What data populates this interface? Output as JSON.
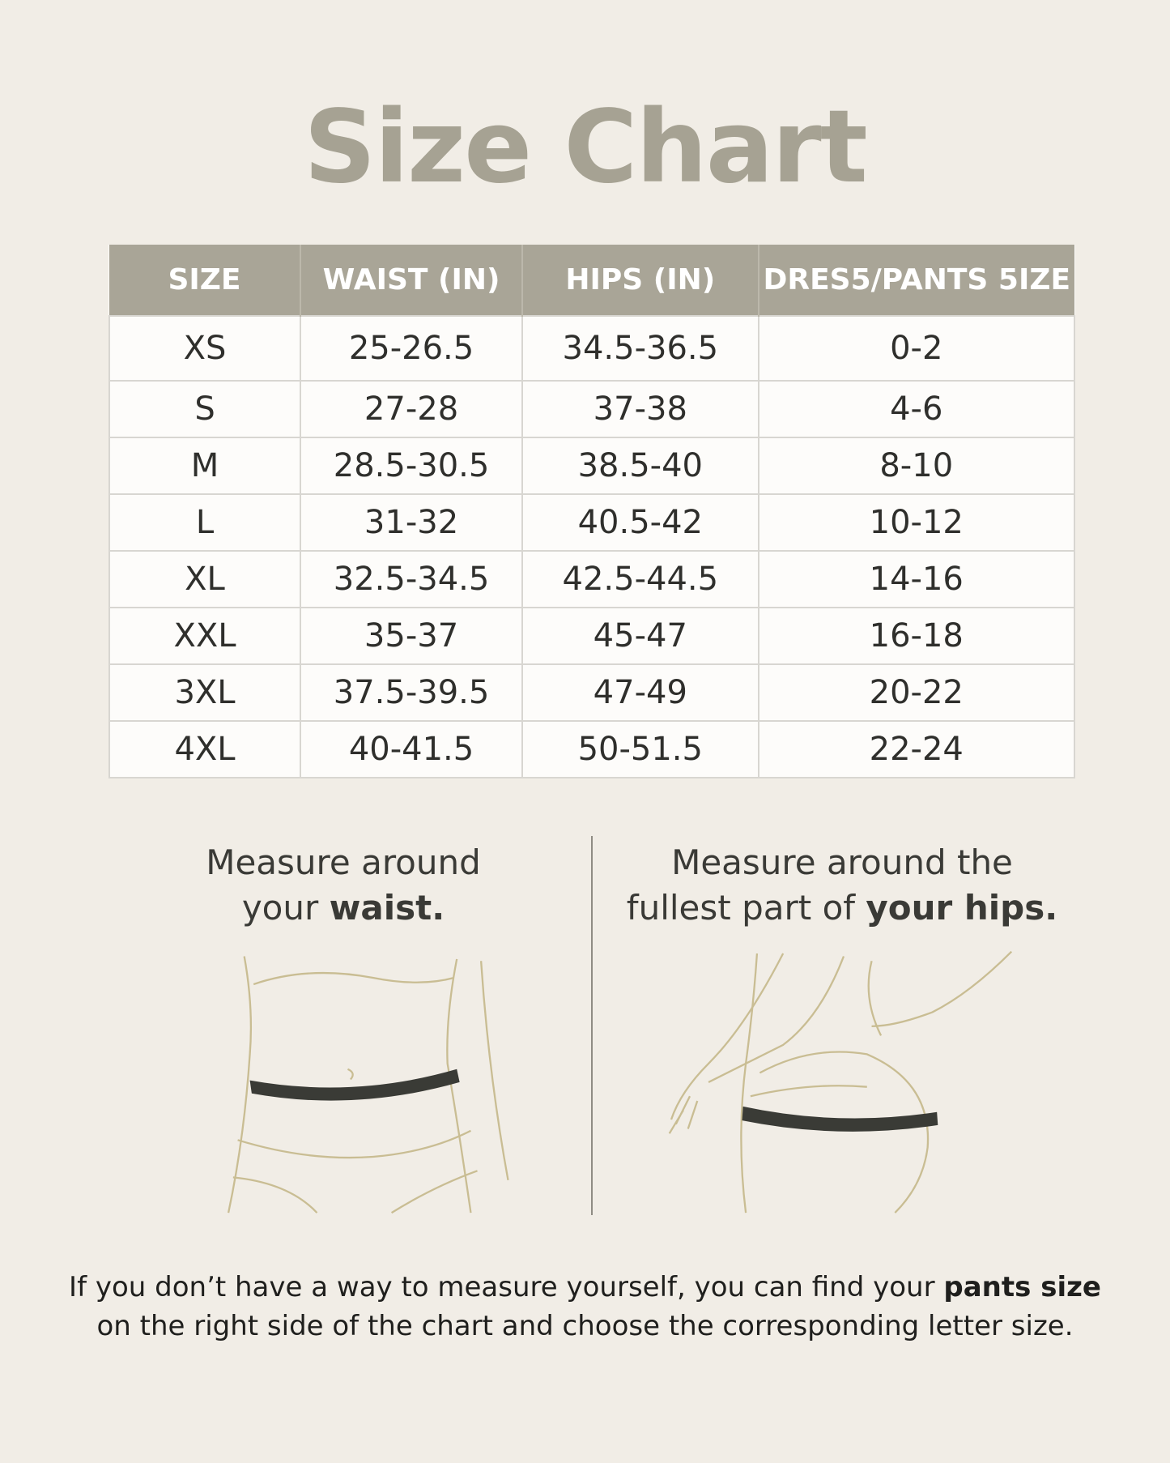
{
  "title": "Size Chart",
  "table": {
    "headers": [
      "SIZE",
      "WAIST (IN)",
      "HIPS (IN)",
      "DRES5/PANTS 5IZE"
    ],
    "rows": [
      [
        "XS",
        "25-26.5",
        "34.5-36.5",
        "0-2"
      ],
      [
        "S",
        "27-28",
        "37-38",
        "4-6"
      ],
      [
        "M",
        "28.5-30.5",
        "38.5-40",
        "8-10"
      ],
      [
        "L",
        "31-32",
        "40.5-42",
        "10-12"
      ],
      [
        "XL",
        "32.5-34.5",
        "42.5-44.5",
        "14-16"
      ],
      [
        "XXL",
        "35-37",
        "45-47",
        "16-18"
      ],
      [
        "3XL",
        "37.5-39.5",
        "47-49",
        "20-22"
      ],
      [
        "4XL",
        "40-41.5",
        "50-51.5",
        "22-24"
      ]
    ]
  },
  "waist_caption": {
    "line1": "Measure around",
    "line2_pre": "your ",
    "line2_bold": "waist."
  },
  "hips_caption": {
    "line1": "Measure around the",
    "line2_pre": "fullest part of ",
    "line2_bold": "your hips."
  },
  "footer": {
    "pre": "If you don’t have a way to measure yourself, you can find your ",
    "bold": "pants size",
    "post": " on the right side of the chart and choose the corresponding letter size."
  },
  "colors": {
    "background": "#f1ede6",
    "header": "#a9a597",
    "title": "#a6a293",
    "outline": "#c9bd93",
    "band": "#3a3b36"
  }
}
